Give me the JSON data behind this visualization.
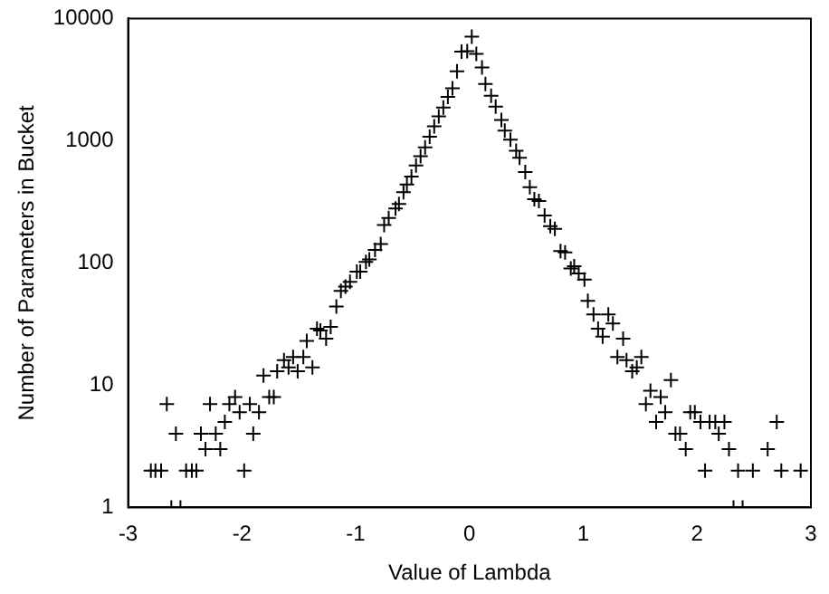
{
  "chart_data": {
    "type": "scatter",
    "xlabel": "Value of Lambda",
    "ylabel": "Number of Parameters in Bucket",
    "log": "y",
    "marker": "cross",
    "grid": false,
    "legend": false,
    "xlim": [
      -3,
      3
    ],
    "xticks": [
      -3,
      -2,
      -1,
      0,
      1,
      2,
      3
    ],
    "ylim": [
      1,
      10000
    ],
    "yticks": [
      1,
      10,
      100,
      1000,
      10000
    ],
    "series": [
      {
        "color": "#000000",
        "x": [
          -2.8,
          -2.76,
          -2.71,
          -2.66,
          -2.62,
          -2.58,
          -2.54,
          -2.49,
          -2.44,
          -2.4,
          -2.36,
          -2.32,
          -2.28,
          -2.23,
          -2.19,
          -2.15,
          -2.11,
          -2.06,
          -2.02,
          -1.98,
          -1.93,
          -1.9,
          -1.85,
          -1.81,
          -1.76,
          -1.72,
          -1.69,
          -1.63,
          -1.59,
          -1.55,
          -1.51,
          -1.46,
          -1.43,
          -1.38,
          -1.34,
          -1.31,
          -1.26,
          -1.22,
          -1.17,
          -1.13,
          -1.09,
          -1.05,
          -0.99,
          -0.96,
          -0.91,
          -0.88,
          -0.83,
          -0.78,
          -0.75,
          -0.71,
          -0.65,
          -0.62,
          -0.58,
          -0.55,
          -0.51,
          -0.47,
          -0.43,
          -0.39,
          -0.35,
          -0.31,
          -0.27,
          -0.23,
          -0.19,
          -0.15,
          -0.11,
          -0.07,
          -0.02,
          0.02,
          0.06,
          0.11,
          0.14,
          0.19,
          0.23,
          0.28,
          0.31,
          0.36,
          0.41,
          0.44,
          0.49,
          0.53,
          0.57,
          0.61,
          0.66,
          0.71,
          0.75,
          0.8,
          0.84,
          0.89,
          0.92,
          0.96,
          1.01,
          1.04,
          1.09,
          1.13,
          1.17,
          1.22,
          1.26,
          1.3,
          1.35,
          1.38,
          1.43,
          1.47,
          1.51,
          1.55,
          1.59,
          1.64,
          1.68,
          1.72,
          1.77,
          1.81,
          1.85,
          1.9,
          1.94,
          1.98,
          2.03,
          2.07,
          2.11,
          2.16,
          2.19,
          2.24,
          2.28,
          2.32,
          2.36,
          2.4,
          2.49,
          2.62,
          2.7,
          2.74,
          2.91
        ],
        "values": [
          2,
          2,
          2,
          7,
          1,
          4,
          1,
          2,
          2,
          2,
          4,
          3,
          7,
          4,
          3,
          5,
          7,
          8,
          6,
          2,
          7,
          4,
          6,
          12,
          8,
          8,
          13,
          16,
          14,
          17,
          13,
          17,
          23,
          14,
          29,
          28,
          24,
          30,
          44,
          59,
          64,
          70,
          85,
          85,
          102,
          107,
          128,
          143,
          204,
          233,
          279,
          304,
          380,
          439,
          508,
          627,
          748,
          884,
          1080,
          1310,
          1580,
          1870,
          2280,
          2690,
          3700,
          5360,
          5400,
          7100,
          5130,
          3970,
          2910,
          2330,
          1900,
          1480,
          1210,
          1020,
          827,
          724,
          554,
          416,
          332,
          321,
          244,
          200,
          190,
          125,
          122,
          90,
          94,
          82,
          73,
          49,
          38,
          29,
          25,
          38,
          32,
          17,
          24,
          16,
          13,
          14,
          17,
          7,
          9,
          5,
          8,
          6,
          11,
          4,
          4,
          3,
          6,
          6,
          5,
          2,
          5,
          5,
          4,
          5,
          3,
          1,
          2,
          1,
          2,
          3,
          5,
          2,
          2
        ]
      }
    ]
  }
}
